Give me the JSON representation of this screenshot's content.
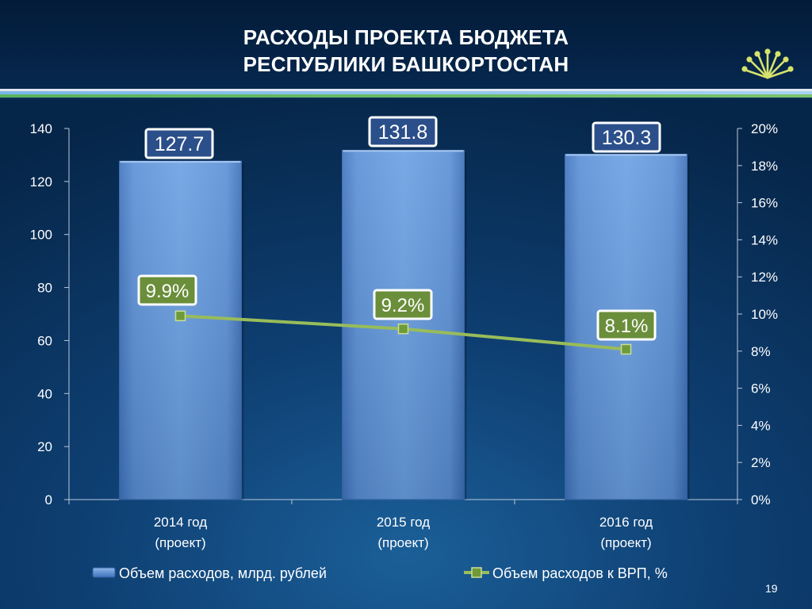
{
  "header": {
    "title_line1": "РАСХОДЫ ПРОЕКТА БЮДЖЕТА",
    "title_line2": "РЕСПУБЛИКИ БАШКОРТОСТАН"
  },
  "logo": {
    "icon": "kurai-flower-icon",
    "color": "#d6e26b"
  },
  "page_number": "19",
  "chart_data": {
    "type": "bar",
    "title": "",
    "categories": [
      [
        "2014 год",
        "(проект)"
      ],
      [
        "2015 год",
        "(проект)"
      ],
      [
        "2016 год",
        "(проект)"
      ]
    ],
    "series": [
      {
        "name": "Объем расходов, млрд. рублей",
        "type": "bar",
        "axis": "left",
        "values": [
          127.7,
          131.8,
          130.3
        ],
        "labels": [
          "127.7",
          "131.8",
          "130.3"
        ],
        "color": "#5a8ed2"
      },
      {
        "name": "Объем расходов к ВРП, %",
        "type": "line",
        "axis": "right",
        "values": [
          9.9,
          9.2,
          8.1
        ],
        "labels": [
          "9.9%",
          "9.2%",
          "8.1%"
        ],
        "color": "#98bc5a"
      }
    ],
    "y_left": {
      "min": 0,
      "max": 140,
      "ticks": [
        "0",
        "20",
        "40",
        "60",
        "80",
        "100",
        "120",
        "140"
      ]
    },
    "y_right": {
      "min": 0,
      "max": 20,
      "ticks": [
        "0%",
        "2%",
        "4%",
        "6%",
        "8%",
        "10%",
        "12%",
        "14%",
        "16%",
        "18%",
        "20%"
      ]
    },
    "grid": false,
    "legend": "bottom"
  }
}
